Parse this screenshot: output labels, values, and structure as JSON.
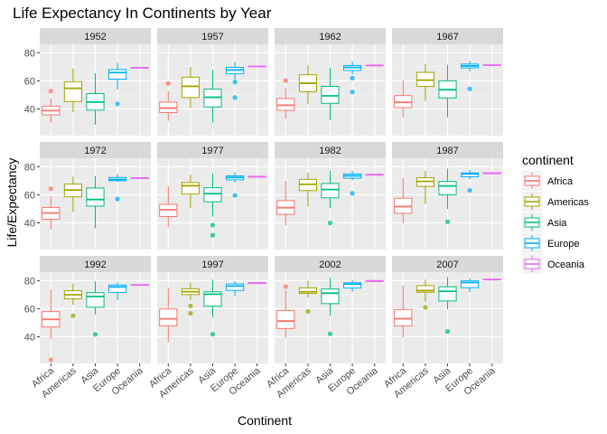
{
  "chart_data": {
    "type": "boxplot",
    "title": "Life Expectancy In Continents by Year",
    "xlabel": "Continent",
    "ylabel": "Life/Expectancy",
    "categories": [
      "Africa",
      "Americas",
      "Asia",
      "Europe",
      "Oceania"
    ],
    "ylim": [
      21,
      86
    ],
    "yticks": [
      40,
      60,
      80
    ],
    "facet_by": "year",
    "facet_layout": "3 rows x 4 columns",
    "grid": true,
    "legend": {
      "title": "continent",
      "position": "right",
      "entries": [
        "Africa",
        "Americas",
        "Asia",
        "Europe",
        "Oceania"
      ]
    },
    "colors": {
      "Africa": "#F8766D",
      "Americas": "#A3A500",
      "Asia": "#00BF7D",
      "Europe": "#00B0F6",
      "Oceania": "#E76BF3",
      "panel_background": "#EBEBEB",
      "strip_background": "#D9D9D9"
    },
    "panels": [
      {
        "year": "1952",
        "boxes": {
          "Africa": {
            "min": 30.0,
            "q1": 35.8,
            "median": 38.8,
            "q3": 42.0,
            "max": 47.5,
            "outliers": [
              52.7
            ]
          },
          "Americas": {
            "min": 37.6,
            "q1": 45.3,
            "median": 54.7,
            "q3": 59.4,
            "max": 68.8,
            "outliers": []
          },
          "Asia": {
            "min": 28.8,
            "q1": 39.1,
            "median": 44.9,
            "q3": 50.9,
            "max": 65.4,
            "outliers": []
          },
          "Europe": {
            "min": 53.8,
            "q1": 61.2,
            "median": 65.9,
            "q3": 68.0,
            "max": 72.7,
            "outliers": [
              43.6
            ]
          },
          "Oceania": {
            "min": 69.1,
            "q1": 69.2,
            "median": 69.3,
            "q3": 69.4,
            "max": 69.4,
            "outliers": []
          }
        }
      },
      {
        "year": "1957",
        "boxes": {
          "Africa": {
            "min": 31.6,
            "q1": 37.4,
            "median": 40.6,
            "q3": 44.8,
            "max": 52.5,
            "outliers": [
              58.1
            ]
          },
          "Americas": {
            "min": 40.7,
            "q1": 48.1,
            "median": 56.1,
            "q3": 62.6,
            "max": 70.0,
            "outliers": []
          },
          "Asia": {
            "min": 30.3,
            "q1": 41.4,
            "median": 48.3,
            "q3": 54.1,
            "max": 67.8,
            "outliers": []
          },
          "Europe": {
            "min": 59.3,
            "q1": 65.0,
            "median": 67.7,
            "q3": 69.6,
            "max": 73.5,
            "outliers": [
              48.1,
              59.0
            ]
          },
          "Oceania": {
            "min": 70.3,
            "q1": 70.3,
            "median": 70.3,
            "q3": 70.4,
            "max": 70.4,
            "outliers": []
          }
        }
      },
      {
        "year": "1962",
        "boxes": {
          "Africa": {
            "min": 32.8,
            "q1": 39.0,
            "median": 42.6,
            "q3": 47.4,
            "max": 55.0,
            "outliers": [
              60.2
            ]
          },
          "Americas": {
            "min": 43.4,
            "q1": 52.3,
            "median": 58.3,
            "q3": 64.3,
            "max": 71.3,
            "outliers": []
          },
          "Asia": {
            "min": 32.0,
            "q1": 44.0,
            "median": 49.3,
            "q3": 56.1,
            "max": 69.4,
            "outliers": []
          },
          "Europe": {
            "min": 64.8,
            "q1": 67.4,
            "median": 69.5,
            "q3": 70.9,
            "max": 73.7,
            "outliers": [
              52.0,
              61.9
            ]
          },
          "Oceania": {
            "min": 70.9,
            "q1": 70.9,
            "median": 71.0,
            "q3": 71.0,
            "max": 71.2,
            "outliers": []
          }
        }
      },
      {
        "year": "1967",
        "boxes": {
          "Africa": {
            "min": 34.1,
            "q1": 40.9,
            "median": 44.7,
            "q3": 49.5,
            "max": 60.7,
            "outliers": []
          },
          "Americas": {
            "min": 45.6,
            "q1": 56.0,
            "median": 60.5,
            "q3": 66.0,
            "max": 72.1,
            "outliers": []
          },
          "Asia": {
            "min": 34.0,
            "q1": 47.8,
            "median": 53.7,
            "q3": 60.0,
            "max": 71.4,
            "outliers": []
          },
          "Europe": {
            "min": 66.8,
            "q1": 69.2,
            "median": 70.6,
            "q3": 71.9,
            "max": 74.2,
            "outliers": [
              54.3
            ]
          },
          "Oceania": {
            "min": 71.1,
            "q1": 71.2,
            "median": 71.2,
            "q3": 71.3,
            "max": 71.5,
            "outliers": []
          }
        }
      },
      {
        "year": "1972",
        "boxes": {
          "Africa": {
            "min": 35.4,
            "q1": 42.5,
            "median": 47.0,
            "q3": 51.0,
            "max": 59.0,
            "outliers": [
              64.3
            ]
          },
          "Americas": {
            "min": 47.8,
            "q1": 58.5,
            "median": 63.4,
            "q3": 67.6,
            "max": 72.9,
            "outliers": []
          },
          "Asia": {
            "min": 36.1,
            "q1": 51.9,
            "median": 56.6,
            "q3": 64.8,
            "max": 73.4,
            "outliers": []
          },
          "Europe": {
            "min": 69.3,
            "q1": 70.0,
            "median": 70.9,
            "q3": 72.3,
            "max": 74.7,
            "outliers": [
              57.0
            ]
          },
          "Oceania": {
            "min": 71.7,
            "q1": 71.8,
            "median": 71.9,
            "q3": 71.9,
            "max": 71.9,
            "outliers": []
          }
        }
      },
      {
        "year": "1977",
        "boxes": {
          "Africa": {
            "min": 36.8,
            "q1": 44.5,
            "median": 49.3,
            "q3": 53.2,
            "max": 66.0,
            "outliers": []
          },
          "Americas": {
            "min": 50.5,
            "q1": 60.5,
            "median": 66.4,
            "q3": 68.7,
            "max": 74.2,
            "outliers": []
          },
          "Asia": {
            "min": 44.5,
            "q1": 55.0,
            "median": 60.8,
            "q3": 65.0,
            "max": 75.4,
            "outliers": [
              31.2,
              38.4
            ]
          },
          "Europe": {
            "min": 68.8,
            "q1": 70.6,
            "median": 72.3,
            "q3": 73.4,
            "max": 76.1,
            "outliers": [
              59.5
            ]
          },
          "Oceania": {
            "min": 72.2,
            "q1": 72.5,
            "median": 72.9,
            "q3": 73.1,
            "max": 73.4,
            "outliers": []
          }
        }
      },
      {
        "year": "1982",
        "boxes": {
          "Africa": {
            "min": 38.4,
            "q1": 46.0,
            "median": 50.8,
            "q3": 55.8,
            "max": 69.9,
            "outliers": []
          },
          "Americas": {
            "min": 51.5,
            "q1": 63.0,
            "median": 67.4,
            "q3": 71.0,
            "max": 75.8,
            "outliers": []
          },
          "Asia": {
            "min": 50.5,
            "q1": 57.8,
            "median": 63.7,
            "q3": 68.0,
            "max": 77.1,
            "outliers": [
              39.9
            ]
          },
          "Europe": {
            "min": 70.4,
            "q1": 71.8,
            "median": 73.5,
            "q3": 74.8,
            "max": 76.9,
            "outliers": [
              61.0
            ]
          },
          "Oceania": {
            "min": 73.8,
            "q1": 74.0,
            "median": 74.3,
            "q3": 74.5,
            "max": 74.7,
            "outliers": []
          }
        }
      },
      {
        "year": "1987",
        "boxes": {
          "Africa": {
            "min": 39.9,
            "q1": 46.8,
            "median": 51.6,
            "q3": 57.6,
            "max": 71.9,
            "outliers": []
          },
          "Americas": {
            "min": 53.6,
            "q1": 66.0,
            "median": 69.5,
            "q3": 72.1,
            "max": 76.9,
            "outliers": []
          },
          "Asia": {
            "min": 50.0,
            "q1": 60.0,
            "median": 66.3,
            "q3": 69.5,
            "max": 78.7,
            "outliers": [
              40.8
            ]
          },
          "Europe": {
            "min": 71.0,
            "q1": 72.8,
            "median": 74.8,
            "q3": 75.5,
            "max": 77.8,
            "outliers": [
              63.1
            ]
          },
          "Oceania": {
            "min": 74.3,
            "q1": 75.0,
            "median": 75.3,
            "q3": 75.6,
            "max": 76.3,
            "outliers": []
          }
        }
      },
      {
        "year": "1992",
        "boxes": {
          "Africa": {
            "min": 38.3,
            "q1": 47.0,
            "median": 52.4,
            "q3": 57.9,
            "max": 73.6,
            "outliers": [
              23.6
            ]
          },
          "Americas": {
            "min": 62.8,
            "q1": 67.0,
            "median": 69.9,
            "q3": 72.8,
            "max": 77.9,
            "outliers": [
              55.0
            ]
          },
          "Asia": {
            "min": 56.0,
            "q1": 61.0,
            "median": 68.7,
            "q3": 71.4,
            "max": 79.4,
            "outliers": [
              41.7
            ]
          },
          "Europe": {
            "min": 66.0,
            "q1": 71.6,
            "median": 75.5,
            "q3": 76.8,
            "max": 78.8,
            "outliers": []
          },
          "Oceania": {
            "min": 76.3,
            "q1": 76.6,
            "median": 76.9,
            "q3": 77.1,
            "max": 77.6,
            "outliers": []
          }
        }
      },
      {
        "year": "1997",
        "boxes": {
          "Africa": {
            "min": 36.1,
            "q1": 47.8,
            "median": 52.8,
            "q3": 59.8,
            "max": 74.8,
            "outliers": []
          },
          "Americas": {
            "min": 66.0,
            "q1": 70.0,
            "median": 72.1,
            "q3": 74.2,
            "max": 78.6,
            "outliers": [
              56.7,
              62.0
            ]
          },
          "Asia": {
            "min": 53.8,
            "q1": 61.8,
            "median": 70.3,
            "q3": 72.0,
            "max": 80.7,
            "outliers": [
              41.8
            ]
          },
          "Europe": {
            "min": 68.8,
            "q1": 73.0,
            "median": 76.1,
            "q3": 77.6,
            "max": 79.4,
            "outliers": []
          },
          "Oceania": {
            "min": 77.6,
            "q1": 77.9,
            "median": 78.2,
            "q3": 78.5,
            "max": 78.8,
            "outliers": []
          }
        }
      },
      {
        "year": "2002",
        "boxes": {
          "Africa": {
            "min": 39.2,
            "q1": 45.9,
            "median": 51.2,
            "q3": 58.7,
            "max": 73.0,
            "outliers": [
              75.7
            ]
          },
          "Americas": {
            "min": 68.0,
            "q1": 70.8,
            "median": 72.0,
            "q3": 74.8,
            "max": 79.8,
            "outliers": [
              58.1
            ]
          },
          "Asia": {
            "min": 55.0,
            "q1": 63.6,
            "median": 71.0,
            "q3": 74.0,
            "max": 82.0,
            "outliers": [
              42.1
            ]
          },
          "Europe": {
            "min": 72.2,
            "q1": 74.8,
            "median": 77.5,
            "q3": 78.4,
            "max": 80.6,
            "outliers": []
          },
          "Oceania": {
            "min": 79.1,
            "q1": 79.4,
            "median": 79.7,
            "q3": 80.0,
            "max": 80.4,
            "outliers": []
          }
        }
      },
      {
        "year": "2007",
        "boxes": {
          "Africa": {
            "min": 39.6,
            "q1": 47.8,
            "median": 52.9,
            "q3": 59.4,
            "max": 76.4,
            "outliers": []
          },
          "Americas": {
            "min": 65.0,
            "q1": 71.7,
            "median": 72.9,
            "q3": 76.4,
            "max": 80.7,
            "outliers": [
              60.9
            ]
          },
          "Asia": {
            "min": 59.5,
            "q1": 65.5,
            "median": 72.4,
            "q3": 75.6,
            "max": 82.6,
            "outliers": [
              43.8
            ]
          },
          "Europe": {
            "min": 71.8,
            "q1": 75.0,
            "median": 78.6,
            "q3": 79.8,
            "max": 81.8,
            "outliers": []
          },
          "Oceania": {
            "min": 80.2,
            "q1": 80.5,
            "median": 80.7,
            "q3": 81.0,
            "max": 81.2,
            "outliers": []
          }
        }
      }
    ]
  }
}
